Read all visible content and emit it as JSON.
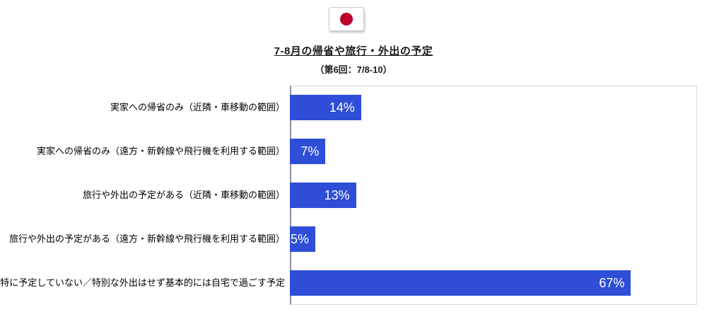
{
  "header": {
    "flag_icon": "japan-flag-icon",
    "title": "7-8月の帰省や旅行・外出の予定",
    "subtitle": "（第6回：7/8-10）"
  },
  "chart_data": {
    "type": "bar",
    "orientation": "horizontal",
    "title": "7-8月の帰省や旅行・外出の予定",
    "subtitle": "（第6回：7/8-10）",
    "categories": [
      "実家への帰省のみ（近隣・車移動の範囲）",
      "実家への帰省のみ（遠方・新幹線や飛行機を利用する範囲）",
      "旅行や外出の予定がある（近隣・車移動の範囲）",
      "旅行や外出の予定がある（遠方・新幹線や飛行機を利用する範囲）",
      "特に予定していない／特別な外出はせず基本的には自宅で過ごす予定"
    ],
    "values": [
      14,
      7,
      13,
      5,
      67
    ],
    "value_labels": [
      "14%",
      "7%",
      "13%",
      "5%",
      "67%"
    ],
    "xlabel": "",
    "ylabel": "",
    "xlim": [
      0,
      80
    ],
    "grid": false,
    "legend": false,
    "bar_color": "#2E4ED8",
    "value_label_color": "#ffffff",
    "axis_line_color": "#8f8fa3"
  }
}
